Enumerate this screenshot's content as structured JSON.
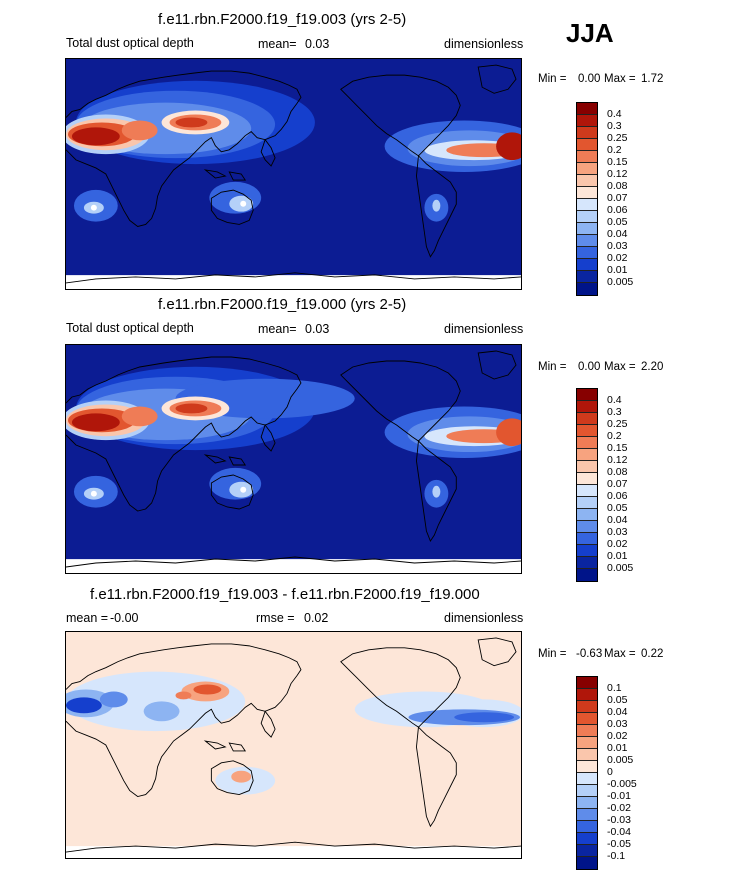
{
  "season": "JJA",
  "panels": [
    {
      "title": "f.e11.rbn.F2000.f19_f19.003 (yrs 2-5)",
      "left_label": "Total dust optical depth",
      "mean_label": "mean=",
      "mean_value": "0.03",
      "units": "dimensionless",
      "min_label": "Min =",
      "min_value": "0.00",
      "max_label": "Max =",
      "max_value": "1.72",
      "levels": [
        "0.4",
        "0.3",
        "0.25",
        "0.2",
        "0.15",
        "0.12",
        "0.08",
        "0.07",
        "0.06",
        "0.05",
        "0.04",
        "0.03",
        "0.02",
        "0.01",
        "0.005"
      ]
    },
    {
      "title": "f.e11.rbn.F2000.f19_f19.000 (yrs 2-5)",
      "left_label": "Total dust optical depth",
      "mean_label": "mean=",
      "mean_value": "0.03",
      "units": "dimensionless",
      "min_label": "Min =",
      "min_value": "0.00",
      "max_label": "Max =",
      "max_value": "2.20",
      "levels": [
        "0.4",
        "0.3",
        "0.25",
        "0.2",
        "0.15",
        "0.12",
        "0.08",
        "0.07",
        "0.06",
        "0.05",
        "0.04",
        "0.03",
        "0.02",
        "0.01",
        "0.005"
      ]
    },
    {
      "title": "f.e11.rbn.F2000.f19_f19.003 - f.e11.rbn.F2000.f19_f19.000",
      "left_label": "mean =",
      "left_value": "-0.00",
      "mean_label": "rmse =",
      "mean_value": "0.02",
      "units": "dimensionless",
      "min_label": "Min =",
      "min_value": "-0.63",
      "max_label": "Max =",
      "max_value": "0.22",
      "levels": [
        "0.1",
        "0.05",
        "0.04",
        "0.03",
        "0.02",
        "0.01",
        "0.005",
        "0",
        "-0.005",
        "-0.01",
        "-0.02",
        "-0.03",
        "-0.04",
        "-0.05",
        "-0.1"
      ]
    }
  ],
  "colors": {
    "abs_scale": [
      "#870000",
      "#b0160a",
      "#cf3a1c",
      "#e2562f",
      "#ef7c56",
      "#f7a37f",
      "#fac6ac",
      "#fde6d8",
      "#d6e6fc",
      "#b4d0f8",
      "#8db4f2",
      "#5f8cea",
      "#3564df",
      "#153fcd",
      "#0a25a0",
      "#001489"
    ],
    "diff_scale": [
      "#870000",
      "#b0160a",
      "#cf3a1c",
      "#e2562f",
      "#ef7c56",
      "#f7a37f",
      "#fac6ac",
      "#fde6d8",
      "#d6e6fc",
      "#b4d0f8",
      "#8db4f2",
      "#5f8cea",
      "#3564df",
      "#153fcd",
      "#0a25a0",
      "#001489"
    ],
    "background_low": "#0c1c93",
    "diff_neutral": "#fde6d8"
  }
}
